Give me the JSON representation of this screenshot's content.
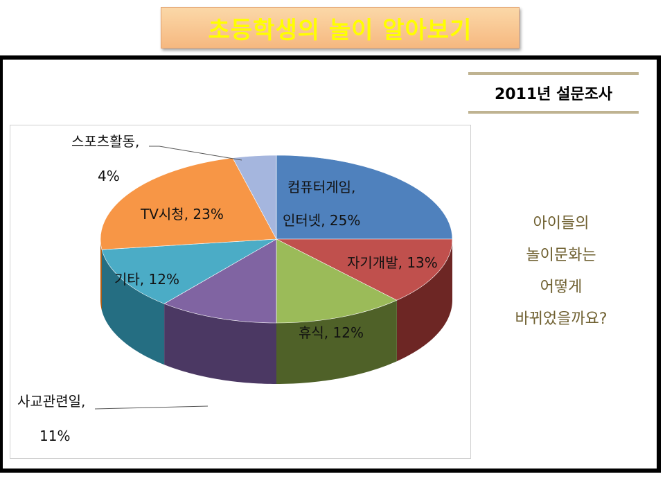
{
  "header": {
    "title": "초등학생의 놀이 알아보기"
  },
  "survey_label": "2011년 설문조사",
  "question_lines": [
    "아이들의",
    "놀이문화는",
    "어떻게",
    "바뀌었을까요?"
  ],
  "chart_data": {
    "type": "pie",
    "style": "3d",
    "title": "",
    "slices": [
      {
        "label": "컴퓨터게임,",
        "label2": "인터넷, 25%",
        "value": 25,
        "color": "#4f81bd",
        "side": "#2f4f79"
      },
      {
        "label": "자기개발, 13%",
        "value": 13,
        "color": "#c0504d",
        "side": "#6d2624"
      },
      {
        "label": "휴식, 12%",
        "value": 12,
        "color": "#9bbb59",
        "side": "#4f6128"
      },
      {
        "label": "사교관련일,",
        "label2": "11%",
        "value": 11,
        "color": "#8064a2",
        "side": "#4b3863"
      },
      {
        "label": "기타, 12%",
        "value": 12,
        "color": "#4bacc6",
        "side": "#256e82"
      },
      {
        "label": "TV시청, 23%",
        "value": 23,
        "color": "#f79646",
        "side": "#b05d15"
      },
      {
        "label": "스포츠활동,",
        "label2": "4%",
        "value": 4,
        "color": "#a5b6de",
        "side": "#6c7ba3"
      }
    ]
  }
}
